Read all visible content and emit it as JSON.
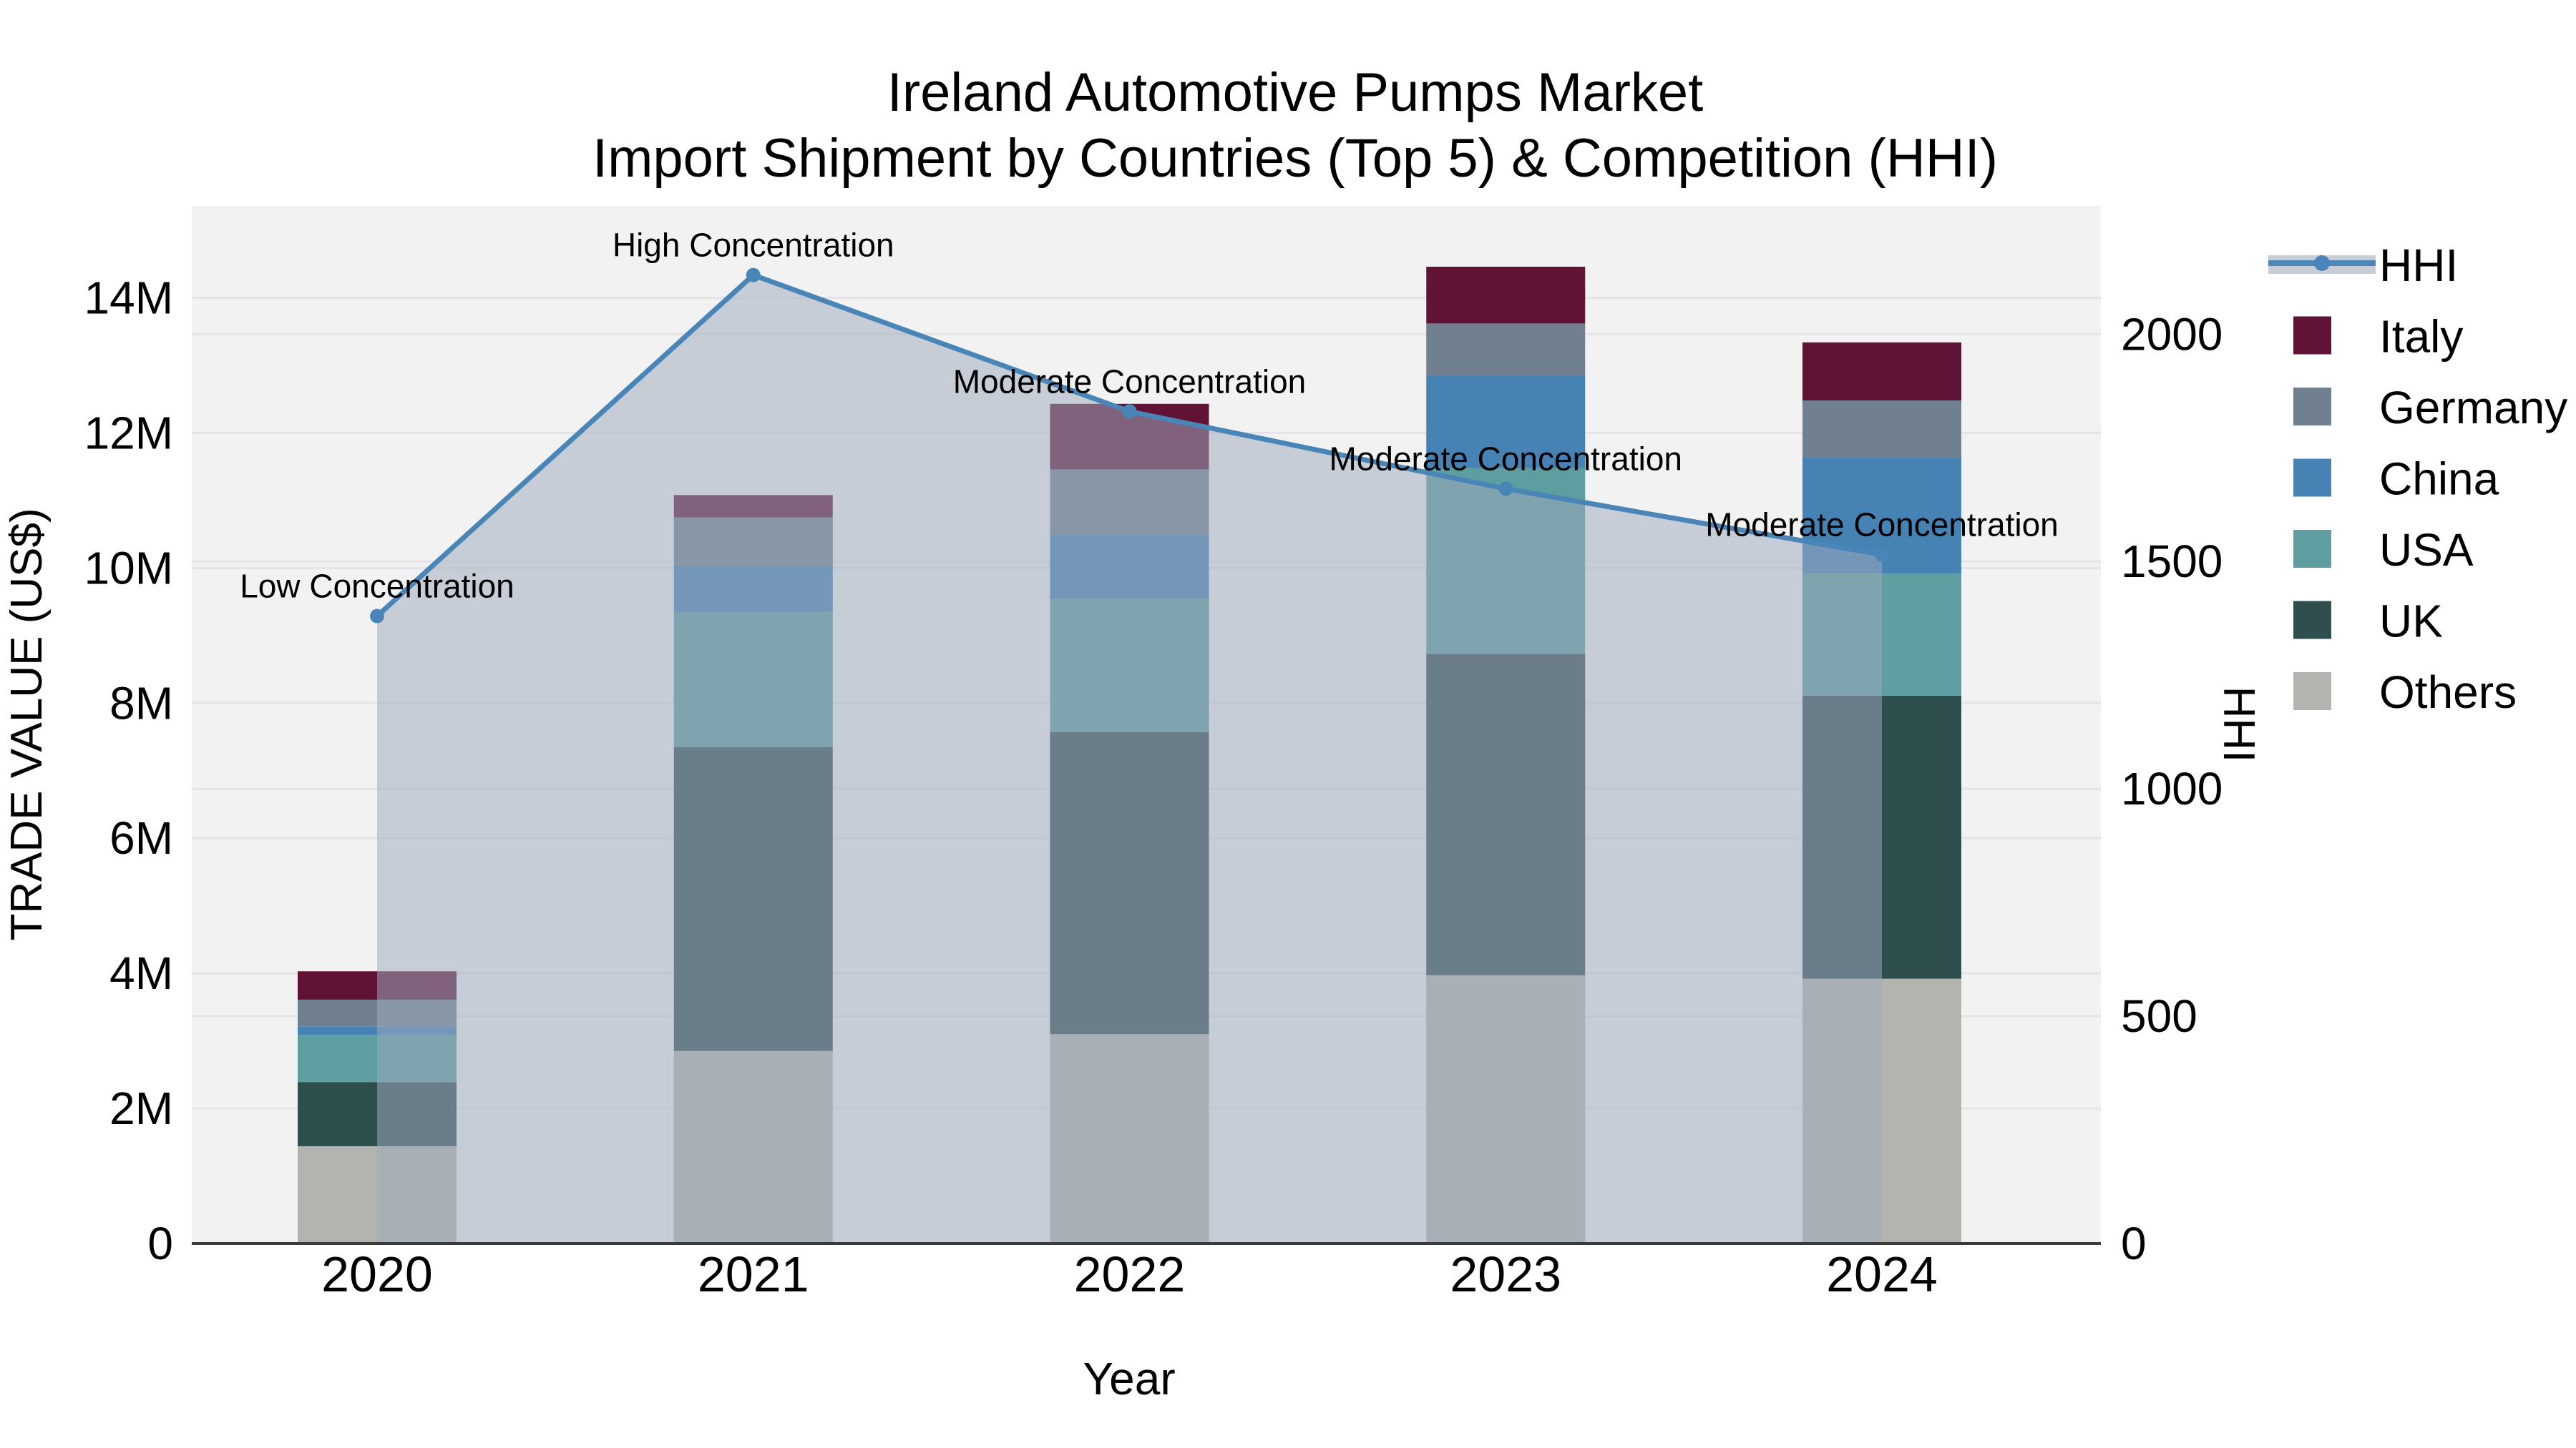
{
  "title": {
    "line1": "Ireland Automotive Pumps Market",
    "line2": "Import Shipment by Countries (Top 5) & Competition (HHI)"
  },
  "axes": {
    "x": {
      "title": "Year",
      "categories": [
        "2020",
        "2021",
        "2022",
        "2023",
        "2024"
      ]
    },
    "y_left": {
      "title": "TRADE VALUE (US$)",
      "tick_labels": [
        "0",
        "2M",
        "4M",
        "6M",
        "8M",
        "10M",
        "12M",
        "14M"
      ],
      "tick_values": [
        0,
        2,
        4,
        6,
        8,
        10,
        12,
        14
      ],
      "max": 15.36
    },
    "y_right": {
      "title": "HHI",
      "tick_labels": [
        "0",
        "500",
        "1000",
        "1500",
        "2000"
      ],
      "tick_values": [
        0,
        500,
        1000,
        1500,
        2000
      ],
      "max": 2282
    }
  },
  "legend": {
    "items": [
      {
        "label": "HHI",
        "type": "line",
        "color": "#4a85b7",
        "band_color": "#c7ccd6"
      },
      {
        "label": "Italy",
        "type": "swatch",
        "color": "#611335"
      },
      {
        "label": "Germany",
        "type": "swatch",
        "color": "#708090"
      },
      {
        "label": "China",
        "type": "swatch",
        "color": "#4682b4"
      },
      {
        "label": "USA",
        "type": "swatch",
        "color": "#5f9ea0"
      },
      {
        "label": "UK",
        "type": "swatch",
        "color": "#2f4f4f"
      },
      {
        "label": "Others",
        "type": "swatch",
        "color": "#b3b3b0"
      }
    ]
  },
  "chart_data": {
    "type": "bar+line",
    "title": "Ireland Automotive Pumps Market — Import Shipment by Countries (Top 5) & Competition (HHI)",
    "xlabel": "Year",
    "ylabel_left": "TRADE VALUE (US$)",
    "ylabel_right": "HHI",
    "categories": [
      "2020",
      "2021",
      "2022",
      "2023",
      "2024"
    ],
    "bar_unit": "million US$",
    "stack_order_note": "series listed bottom-to-top of stack",
    "series": [
      {
        "name": "Others",
        "color": "#b3b3b0",
        "values": [
          1.44,
          2.85,
          3.1,
          3.97,
          3.92
        ]
      },
      {
        "name": "UK",
        "color": "#2f4f4f",
        "values": [
          0.95,
          4.5,
          4.47,
          4.76,
          4.19
        ]
      },
      {
        "name": "USA",
        "color": "#5f9ea0",
        "values": [
          0.7,
          2.0,
          1.97,
          2.75,
          1.81
        ]
      },
      {
        "name": "China",
        "color": "#4682b4",
        "values": [
          0.12,
          0.68,
          0.95,
          1.37,
          1.72
        ]
      },
      {
        "name": "Germany",
        "color": "#708090",
        "values": [
          0.4,
          0.72,
          0.97,
          0.77,
          0.84
        ]
      },
      {
        "name": "Italy",
        "color": "#611335",
        "values": [
          0.42,
          0.33,
          0.97,
          0.84,
          0.86
        ]
      }
    ],
    "bar_totals": [
      4.03,
      11.08,
      12.43,
      14.46,
      13.34
    ],
    "line": {
      "name": "HHI",
      "axis": "right",
      "color": "#4a85b7",
      "area_fill": "rgba(160,170,189,0.52)",
      "values": [
        1380,
        2130,
        1830,
        1660,
        1515
      ]
    },
    "annotations": [
      {
        "category": "2020",
        "label": "Low Concentration"
      },
      {
        "category": "2021",
        "label": "High Concentration"
      },
      {
        "category": "2022",
        "label": "Moderate Concentration"
      },
      {
        "category": "2023",
        "label": "Moderate Concentration"
      },
      {
        "category": "2024",
        "label": "Moderate Concentration"
      }
    ],
    "ylim_left": [
      0,
      15.36
    ],
    "ylim_right": [
      0,
      2282
    ],
    "grid": true,
    "legend_position": "right",
    "plot_background": "#f2f2f3",
    "grid_color": "#e4e4e8"
  }
}
